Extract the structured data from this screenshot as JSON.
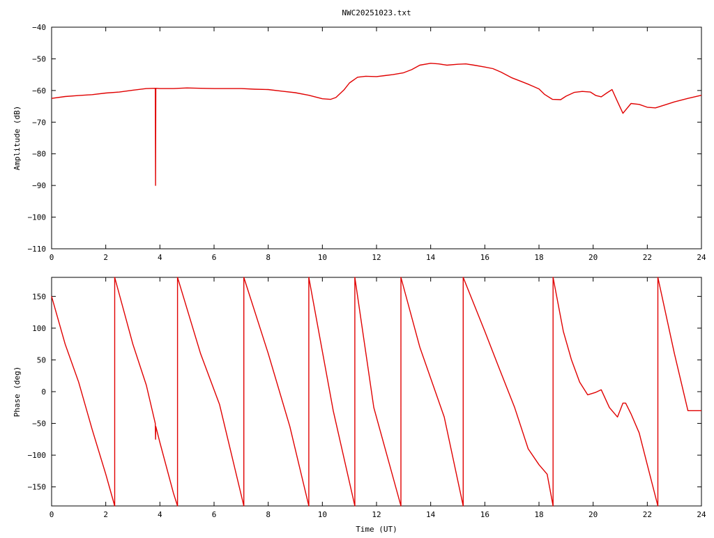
{
  "title": "NWC20251023.txt",
  "colors": {
    "series": "#e00000",
    "axis": "#000000",
    "background": "#ffffff"
  },
  "chart_data": [
    {
      "type": "line",
      "ylabel": "Amplitude (dB)",
      "xlabel": "",
      "xlim": [
        0,
        24
      ],
      "ylim": [
        -110,
        -40
      ],
      "xticks": [
        0,
        2,
        4,
        6,
        8,
        10,
        12,
        14,
        16,
        18,
        20,
        22,
        24
      ],
      "yticks": [
        -110,
        -100,
        -90,
        -80,
        -70,
        -60,
        -50,
        -40
      ],
      "tick_labels_x": [
        "0",
        "2",
        "4",
        "6",
        "8",
        "10",
        "12",
        "14",
        "16",
        "18",
        "20",
        "22",
        "24"
      ],
      "tick_labels_y": [
        "−110",
        "−100",
        "−90",
        "−80",
        "−70",
        "−60",
        "−50",
        "−40"
      ],
      "grid": false,
      "series": [
        {
          "x": [
            0,
            0.5,
            1,
            1.5,
            2,
            2.5,
            3,
            3.5,
            3.83,
            3.84,
            3.85,
            4,
            4.5,
            5,
            5.5,
            6,
            6.5,
            7,
            7.5,
            8,
            8.5,
            9,
            9.5,
            10,
            10.3,
            10.5,
            10.8,
            11,
            11.3,
            11.6,
            12,
            12.3,
            12.6,
            13,
            13.3,
            13.6,
            14,
            14.3,
            14.6,
            15,
            15.3,
            15.6,
            16,
            16.3,
            16.6,
            17,
            17.3,
            17.6,
            18,
            18.2,
            18.5,
            18.8,
            19,
            19.3,
            19.6,
            19.9,
            20.1,
            20.3,
            20.5,
            20.7,
            20.9,
            21.1,
            21.4,
            21.7,
            22,
            22.3,
            22.6,
            23,
            23.5,
            24
          ],
          "y": [
            -62.5,
            -61.9,
            -61.6,
            -61.3,
            -60.8,
            -60.5,
            -59.9,
            -59.4,
            -59.3,
            -90,
            -59.3,
            -59.4,
            -59.4,
            -59.2,
            -59.3,
            -59.4,
            -59.4,
            -59.4,
            -59.6,
            -59.7,
            -60.2,
            -60.7,
            -61.5,
            -62.6,
            -62.8,
            -62.2,
            -59.8,
            -57.6,
            -55.8,
            -55.5,
            -55.6,
            -55.3,
            -55.0,
            -54.4,
            -53.4,
            -52.0,
            -51.4,
            -51.6,
            -52.0,
            -51.7,
            -51.6,
            -52.0,
            -52.6,
            -53.1,
            -54.2,
            -56.0,
            -57.0,
            -58.0,
            -59.5,
            -61.2,
            -62.8,
            -62.9,
            -61.8,
            -60.6,
            -60.3,
            -60.5,
            -61.6,
            -62.0,
            -60.8,
            -59.7,
            -63.5,
            -67.2,
            -64.1,
            -64.4,
            -65.3,
            -65.5,
            -64.7,
            -63.6,
            -62.5,
            -61.5
          ]
        }
      ]
    },
    {
      "type": "line",
      "ylabel": "Phase (deg)",
      "xlabel": "Time (UT)",
      "xlim": [
        0,
        24
      ],
      "ylim": [
        -180,
        180
      ],
      "xticks": [
        0,
        2,
        4,
        6,
        8,
        10,
        12,
        14,
        16,
        18,
        20,
        22,
        24
      ],
      "yticks": [
        -150,
        -100,
        -50,
        0,
        50,
        100,
        150
      ],
      "tick_labels_x": [
        "0",
        "2",
        "4",
        "6",
        "8",
        "10",
        "12",
        "14",
        "16",
        "18",
        "20",
        "22",
        "24"
      ],
      "tick_labels_y": [
        "−150",
        "−100",
        "−50",
        "0",
        "50",
        "100",
        "150"
      ],
      "grid": false,
      "series": [
        {
          "x": [
            0,
            0.5,
            1,
            1.5,
            2,
            2.33,
            2.33,
            3,
            3.5,
            3.83,
            3.84,
            3.85,
            4,
            4.5,
            4.65,
            4.65,
            5.5,
            6.2,
            7.1,
            7.1,
            8,
            8.8,
            9.5,
            9.5,
            10.4,
            11.2,
            11.2,
            11.9,
            12.9,
            12.9,
            13.6,
            14.5,
            15.2,
            15.2,
            16,
            16.5,
            17.1,
            17.6,
            18,
            18.3,
            18.52,
            18.52,
            18.9,
            19.2,
            19.5,
            19.8,
            20.1,
            20.3,
            20.6,
            20.9,
            21.1,
            21.2,
            21.4,
            21.7,
            22,
            22.39,
            22.39,
            23,
            23.5,
            24
          ],
          "y": [
            150,
            75,
            15,
            -60,
            -130,
            -180,
            180,
            75,
            10,
            -50,
            -75,
            -55,
            -80,
            -160,
            -180,
            180,
            60,
            -20,
            -180,
            180,
            60,
            -55,
            -180,
            180,
            -30,
            -180,
            180,
            -25,
            -180,
            180,
            70,
            -40,
            -180,
            180,
            95,
            40,
            -25,
            -90,
            -115,
            -130,
            -180,
            180,
            95,
            50,
            15,
            -5,
            -1,
            3,
            -25,
            -40,
            -18,
            -18,
            -35,
            -65,
            -115,
            -180,
            180,
            60,
            -30,
            -30
          ]
        }
      ]
    }
  ]
}
